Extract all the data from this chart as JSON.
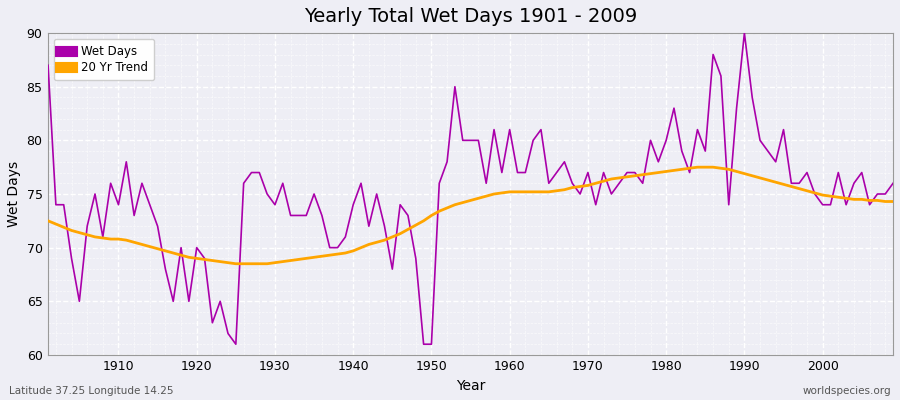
{
  "title": "Yearly Total Wet Days 1901 - 2009",
  "xlabel": "Year",
  "ylabel": "Wet Days",
  "ylim": [
    60,
    90
  ],
  "xlim": [
    1901,
    2009
  ],
  "yticks": [
    60,
    65,
    70,
    75,
    80,
    85,
    90
  ],
  "xticks": [
    1910,
    1920,
    1930,
    1940,
    1950,
    1960,
    1970,
    1980,
    1990,
    2000
  ],
  "wet_days_color": "#AA00AA",
  "trend_color": "#FFA500",
  "background_color": "#EEEEF5",
  "grid_color": "#FFFFFF",
  "fig_facecolor": "#EEEEF5",
  "wet_days_label": "Wet Days",
  "trend_label": "20 Yr Trend",
  "subtitle_left": "Latitude 37.25 Longitude 14.25",
  "subtitle_right": "worldspecies.org",
  "years": [
    1901,
    1902,
    1903,
    1904,
    1905,
    1906,
    1907,
    1908,
    1909,
    1910,
    1911,
    1912,
    1913,
    1914,
    1915,
    1916,
    1917,
    1918,
    1919,
    1920,
    1921,
    1922,
    1923,
    1924,
    1925,
    1926,
    1927,
    1928,
    1929,
    1930,
    1931,
    1932,
    1933,
    1934,
    1935,
    1936,
    1937,
    1938,
    1939,
    1940,
    1941,
    1942,
    1943,
    1944,
    1945,
    1946,
    1947,
    1948,
    1949,
    1950,
    1951,
    1952,
    1953,
    1954,
    1955,
    1956,
    1957,
    1958,
    1959,
    1960,
    1961,
    1962,
    1963,
    1964,
    1965,
    1966,
    1967,
    1968,
    1969,
    1970,
    1971,
    1972,
    1973,
    1974,
    1975,
    1976,
    1977,
    1978,
    1979,
    1980,
    1981,
    1982,
    1983,
    1984,
    1985,
    1986,
    1987,
    1988,
    1989,
    1990,
    1991,
    1992,
    1993,
    1994,
    1995,
    1996,
    1997,
    1998,
    1999,
    2000,
    2001,
    2002,
    2003,
    2004,
    2005,
    2006,
    2007,
    2008,
    2009
  ],
  "wet_days": [
    87,
    74,
    74,
    69,
    65,
    72,
    75,
    71,
    76,
    74,
    78,
    73,
    76,
    74,
    72,
    68,
    65,
    70,
    65,
    70,
    69,
    63,
    65,
    62,
    61,
    76,
    77,
    77,
    75,
    74,
    76,
    73,
    73,
    73,
    75,
    73,
    70,
    70,
    71,
    74,
    76,
    72,
    75,
    72,
    68,
    74,
    73,
    69,
    61,
    61,
    76,
    78,
    85,
    80,
    80,
    80,
    76,
    81,
    77,
    81,
    77,
    77,
    80,
    81,
    76,
    77,
    78,
    76,
    75,
    77,
    74,
    77,
    75,
    76,
    77,
    77,
    76,
    80,
    78,
    80,
    83,
    79,
    77,
    81,
    79,
    88,
    86,
    74,
    83,
    90,
    84,
    80,
    79,
    78,
    81,
    76,
    76,
    77,
    75,
    74,
    74,
    77,
    74,
    76,
    77,
    74,
    75,
    75,
    76
  ],
  "trend": [
    72.5,
    72.2,
    71.9,
    71.6,
    71.4,
    71.2,
    71.0,
    70.9,
    70.8,
    70.8,
    70.7,
    70.5,
    70.3,
    70.1,
    69.9,
    69.7,
    69.5,
    69.3,
    69.1,
    69.0,
    68.9,
    68.8,
    68.7,
    68.6,
    68.5,
    68.5,
    68.5,
    68.5,
    68.5,
    68.6,
    68.7,
    68.8,
    68.9,
    69.0,
    69.1,
    69.2,
    69.3,
    69.4,
    69.5,
    69.7,
    70.0,
    70.3,
    70.5,
    70.7,
    71.0,
    71.3,
    71.7,
    72.1,
    72.5,
    73.0,
    73.4,
    73.7,
    74.0,
    74.2,
    74.4,
    74.6,
    74.8,
    75.0,
    75.1,
    75.2,
    75.2,
    75.2,
    75.2,
    75.2,
    75.2,
    75.3,
    75.4,
    75.6,
    75.7,
    75.8,
    76.0,
    76.2,
    76.4,
    76.5,
    76.6,
    76.7,
    76.8,
    76.9,
    77.0,
    77.1,
    77.2,
    77.3,
    77.4,
    77.5,
    77.5,
    77.5,
    77.4,
    77.3,
    77.1,
    76.9,
    76.7,
    76.5,
    76.3,
    76.1,
    75.9,
    75.7,
    75.5,
    75.3,
    75.1,
    74.9,
    74.8,
    74.7,
    74.6,
    74.5,
    74.5,
    74.4,
    74.4,
    74.3,
    74.3
  ]
}
